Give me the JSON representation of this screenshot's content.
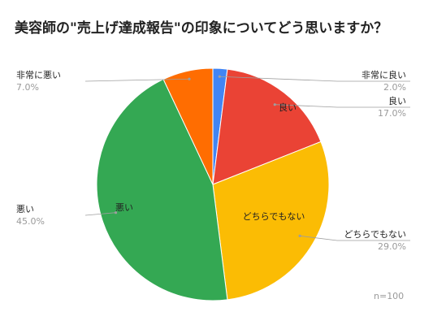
{
  "chart_data": {
    "type": "pie",
    "title": "美容師の\"売上げ達成報告\"の印象についてどう思いますか？",
    "categories": [
      "非常に良い",
      "良い",
      "どちらでもない",
      "悪い",
      "非常に悪い"
    ],
    "values": [
      2.0,
      17.0,
      29.0,
      45.0,
      7.0
    ],
    "percent_labels": [
      "2.0%",
      "17.0%",
      "29.0%",
      "45.0%",
      "7.0%"
    ],
    "colors": [
      "#4285f4",
      "#ea4335",
      "#fbbc04",
      "#34a853",
      "#ff6d01"
    ],
    "inner_labels": [
      "",
      "良い",
      "どちらでもない",
      "悪い",
      ""
    ],
    "start_angle_deg": 0,
    "direction": "clockwise",
    "note": "n=100"
  }
}
